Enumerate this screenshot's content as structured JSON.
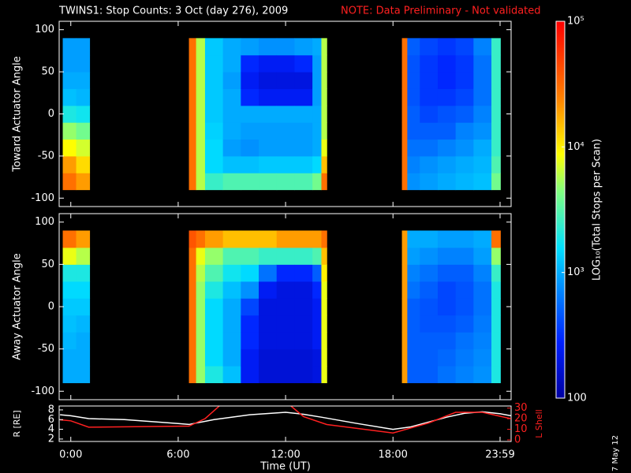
{
  "chart_data": {
    "type": "spectrogram",
    "title": "TWINS1: Stop Counts:  3 Oct (day 276), 2009",
    "note": "NOTE: Data Preliminary - Not validated",
    "note_color": "#ff2020",
    "date_label": "7 May 12",
    "xlabel": "Time (UT)",
    "xlim": [
      -0.65,
      24.6
    ],
    "xticks": [
      {
        "value": 0,
        "label": "0:00"
      },
      {
        "value": 6,
        "label": "6:00"
      },
      {
        "value": 12,
        "label": "12:00"
      },
      {
        "value": 18,
        "label": "18:00"
      },
      {
        "value": 23.983,
        "label": "23:59"
      }
    ],
    "angle_edges": [
      -90,
      -70,
      -50,
      -30,
      -10,
      10,
      30,
      50,
      70,
      90
    ],
    "colorbar": {
      "label": "LOG₁₀(Total Stops per Scan)",
      "log": true,
      "zlim": [
        100,
        100000
      ],
      "zticks": [
        {
          "value": 100000,
          "label": "10⁵"
        },
        {
          "value": 10000,
          "label": "10⁴"
        },
        {
          "value": 1000,
          "label": "10³"
        },
        100
      ]
    },
    "panels": [
      {
        "ylabel": "Toward Actuator Angle",
        "ylim": [
          -110,
          110
        ],
        "yticks": [
          -100,
          -50,
          0,
          50,
          100
        ],
        "segments": [
          {
            "time_edges": [
              -0.45,
              0.3,
              1.05
            ],
            "values": [
              [
                30000,
                20000,
                9000,
                5000,
                2000,
                1200,
                1000,
                900,
                900
              ],
              [
                20000,
                12000,
                7000,
                4000,
                1800,
                1100,
                1000,
                900,
                900
              ]
            ]
          },
          {
            "time_edges": [
              6.6,
              7.0,
              7.5,
              8.5,
              9.5,
              10.5,
              11.5,
              12.5,
              13.5,
              14.0,
              14.3
            ],
            "values": [
              [
                30000,
                30000,
                30000,
                30000,
                30000,
                30000,
                30000,
                30000,
                30000
              ],
              [
                6000,
                6000,
                6000,
                6000,
                6000,
                6000,
                6000,
                6000,
                6000
              ],
              [
                2500,
                1500,
                1500,
                1400,
                1300,
                1300,
                1300,
                1300,
                1300
              ],
              [
                3000,
                1200,
                900,
                1000,
                1000,
                1000,
                900,
                1000,
                1000
              ],
              [
                3000,
                1200,
                800,
                900,
                1000,
                300,
                250,
                300,
                900
              ],
              [
                3000,
                1300,
                900,
                900,
                1000,
                250,
                200,
                250,
                800
              ],
              [
                3000,
                1300,
                900,
                900,
                1000,
                250,
                200,
                250,
                800
              ],
              [
                3000,
                1300,
                900,
                900,
                1000,
                250,
                200,
                300,
                900
              ],
              [
                4000,
                1500,
                1000,
                1000,
                1000,
                900,
                900,
                900,
                1000
              ],
              [
                30000,
                15000,
                8000,
                6000,
                6000,
                6000,
                6000,
                6000,
                6000
              ]
            ]
          },
          {
            "time_edges": [
              18.5,
              18.8,
              19.5,
              20.5,
              21.5,
              22.5,
              23.5,
              24.0
            ],
            "values": [
              [
                30000,
                30000,
                30000,
                30000,
                30000,
                30000,
                30000,
                30000,
                30000
              ],
              [
                800,
                700,
                600,
                500,
                500,
                450,
                450,
                450,
                500
              ],
              [
                900,
                800,
                600,
                500,
                400,
                350,
                350,
                350,
                400
              ],
              [
                1000,
                900,
                700,
                500,
                450,
                350,
                300,
                300,
                350
              ],
              [
                1100,
                1000,
                800,
                700,
                500,
                400,
                350,
                350,
                400
              ],
              [
                1200,
                1100,
                1000,
                800,
                700,
                600,
                600,
                600,
                700
              ],
              [
                4000,
                3000,
                2500,
                2500,
                2500,
                2500,
                2500,
                2500,
                2500
              ]
            ]
          }
        ]
      },
      {
        "ylabel": "Away Actuator Angle",
        "ylim": [
          -110,
          110
        ],
        "yticks": [
          -100,
          -50,
          0,
          50,
          100
        ],
        "segments": [
          {
            "time_edges": [
              -0.45,
              0.3,
              1.05
            ],
            "values": [
              [
                1000,
                1000,
                1100,
                1200,
                1300,
                1500,
                2000,
                8000,
                30000
              ],
              [
                1000,
                1000,
                1000,
                1100,
                1300,
                1500,
                2000,
                6000,
                20000
              ]
            ]
          },
          {
            "time_edges": [
              6.6,
              7.0,
              7.5,
              8.5,
              9.5,
              10.5,
              11.5,
              12.5,
              13.5,
              14.0,
              14.3
            ],
            "values": [
              [
                30000,
                30000,
                30000,
                30000,
                30000,
                30000,
                30000,
                30000,
                40000
              ],
              [
                5000,
                5000,
                5000,
                5000,
                5000,
                5000,
                6000,
                8000,
                30000
              ],
              [
                2000,
                1500,
                1500,
                1500,
                1500,
                2000,
                3000,
                5000,
                20000
              ],
              [
                1200,
                1000,
                1000,
                1000,
                1000,
                1200,
                1800,
                3000,
                15000
              ],
              [
                250,
                250,
                300,
                300,
                400,
                800,
                1500,
                3000,
                15000
              ],
              [
                180,
                180,
                200,
                200,
                200,
                250,
                600,
                2500,
                15000
              ],
              [
                180,
                180,
                200,
                200,
                200,
                200,
                300,
                2500,
                20000
              ],
              [
                180,
                180,
                200,
                200,
                200,
                200,
                300,
                2500,
                20000
              ],
              [
                200,
                200,
                250,
                250,
                250,
                300,
                500,
                3000,
                20000
              ],
              [
                8000,
                8000,
                8000,
                8000,
                8000,
                8000,
                10000,
                15000,
                30000
              ]
            ]
          },
          {
            "time_edges": [
              18.5,
              18.8,
              19.5,
              20.5,
              21.5,
              22.5,
              23.5,
              24.0
            ],
            "values": [
              [
                20000,
                20000,
                20000,
                20000,
                20000,
                20000,
                20000,
                20000,
                20000
              ],
              [
                500,
                500,
                500,
                500,
                500,
                600,
                700,
                900,
                1000
              ],
              [
                500,
                500,
                500,
                450,
                450,
                500,
                600,
                800,
                1000
              ],
              [
                600,
                550,
                500,
                450,
                400,
                400,
                500,
                700,
                900
              ],
              [
                700,
                650,
                600,
                500,
                450,
                450,
                500,
                700,
                900
              ],
              [
                800,
                750,
                700,
                650,
                600,
                600,
                700,
                900,
                1000
              ],
              [
                2000,
                2000,
                2000,
                2000,
                2000,
                2000,
                2500,
                5000,
                30000
              ]
            ]
          }
        ]
      }
    ],
    "orbit": {
      "ylabel": "R [RE]",
      "ylim": [
        1.5,
        8.8
      ],
      "yticks": [
        2,
        4,
        6,
        8
      ],
      "y2label": "L Shell",
      "y2lim": [
        -1.5,
        32
      ],
      "y2ticks": [
        0,
        10,
        20,
        30
      ],
      "y2color": "#ff2020",
      "series": [
        {
          "name": "R",
          "color": "#ffffff",
          "x": [
            -0.6,
            0,
            1,
            3,
            6,
            6.6,
            8,
            10,
            12,
            13,
            14,
            16,
            18,
            19,
            20,
            21,
            22,
            23,
            24,
            24.6
          ],
          "values": [
            7,
            6.8,
            6.2,
            6.0,
            5.2,
            5.0,
            6.0,
            7.0,
            7.5,
            7.1,
            6.5,
            5.2,
            4.0,
            4.5,
            5.5,
            6.5,
            7.3,
            7.6,
            7.2,
            6.8
          ]
        },
        {
          "name": "L Shell",
          "color": "#ff2020",
          "axis": "y2",
          "x": [
            -0.6,
            0,
            1.0,
            6.6,
            7.5,
            8.3,
            10,
            12.3,
            13,
            14.3,
            18,
            20,
            21.5,
            23,
            24.6
          ],
          "values": [
            19,
            18,
            12,
            13,
            20,
            32,
            null,
            32,
            22,
            14.5,
            6.5,
            16,
            26,
            26,
            20
          ]
        }
      ]
    }
  }
}
